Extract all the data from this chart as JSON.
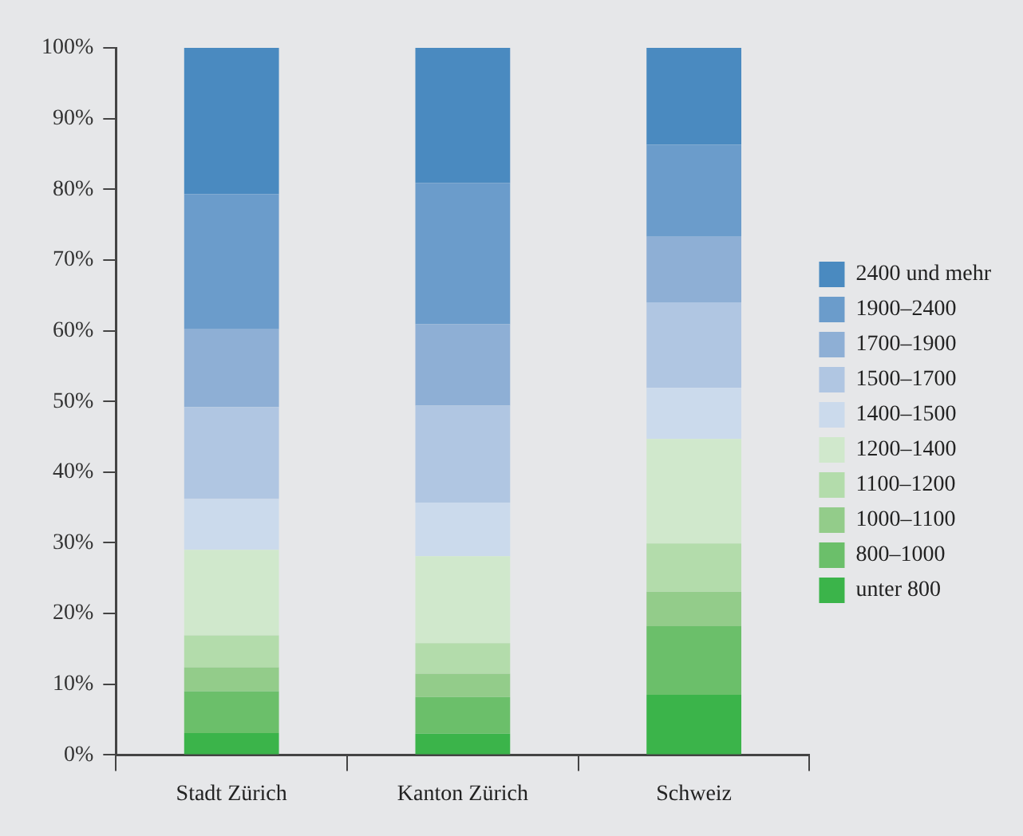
{
  "chart_data": {
    "type": "bar",
    "stacked": true,
    "categories": [
      "Stadt Zürich",
      "Kanton Zürich",
      "Schweiz"
    ],
    "series": [
      {
        "name": "unter 800",
        "color": "#3bb44a",
        "values": [
          3.1,
          3.0,
          8.5
        ]
      },
      {
        "name": "800–1000",
        "color": "#6bbf6a",
        "values": [
          5.9,
          5.2,
          9.7
        ]
      },
      {
        "name": "1000–1100",
        "color": "#93cc8a",
        "values": [
          3.4,
          3.3,
          4.9
        ]
      },
      {
        "name": "1100–1200",
        "color": "#b3dcab",
        "values": [
          4.5,
          4.3,
          6.8
        ]
      },
      {
        "name": "1200–1400",
        "color": "#d0e8cc",
        "values": [
          12.1,
          12.3,
          14.8
        ]
      },
      {
        "name": "1400–1500",
        "color": "#cbdaec",
        "values": [
          7.2,
          7.6,
          7.2
        ]
      },
      {
        "name": "1500–1700",
        "color": "#b0c6e2",
        "values": [
          13.0,
          13.7,
          12.1
        ]
      },
      {
        "name": "1700–1900",
        "color": "#8eafd5",
        "values": [
          11.0,
          11.5,
          9.3
        ]
      },
      {
        "name": "1900–2400",
        "color": "#6b9ccb",
        "values": [
          19.1,
          20.0,
          13.0
        ]
      },
      {
        "name": "2400 und mehr",
        "color": "#4a8ac0",
        "values": [
          20.7,
          19.1,
          13.7
        ]
      }
    ],
    "ylim": [
      0,
      100
    ],
    "yticks": [
      {
        "value": 0,
        "label": "0%"
      },
      {
        "value": 10,
        "label": "10%"
      },
      {
        "value": 20,
        "label": "20%"
      },
      {
        "value": 30,
        "label": "30%"
      },
      {
        "value": 40,
        "label": "40%"
      },
      {
        "value": 50,
        "label": "50%"
      },
      {
        "value": 60,
        "label": "60%"
      },
      {
        "value": 70,
        "label": "70%"
      },
      {
        "value": 80,
        "label": "80%"
      },
      {
        "value": 90,
        "label": "90%"
      },
      {
        "value": 100,
        "label": "100%"
      }
    ],
    "grid": false,
    "legend": "right"
  }
}
